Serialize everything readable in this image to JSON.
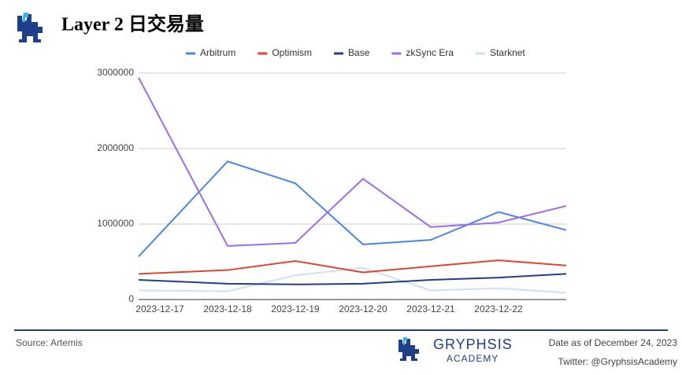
{
  "chart_data": {
    "type": "line",
    "title": "Layer 2 日交易量",
    "categories": [
      "2023-12-17",
      "2023-12-18",
      "2023-12-19",
      "2023-12-20",
      "2023-12-21",
      "2023-12-22",
      null
    ],
    "series": [
      {
        "name": "Arbitrum",
        "color": "#4a86e8",
        "values": [
          570000,
          1830000,
          1540000,
          730000,
          790000,
          1160000,
          920000
        ]
      },
      {
        "name": "Optimism",
        "color": "#e0452f",
        "values": [
          340000,
          390000,
          510000,
          360000,
          440000,
          520000,
          450000
        ]
      },
      {
        "name": "Base",
        "color": "#1f3f8a",
        "values": [
          260000,
          210000,
          200000,
          210000,
          260000,
          290000,
          340000
        ]
      },
      {
        "name": "zkSync Era",
        "color": "#9b6cf0",
        "values": [
          2940000,
          710000,
          750000,
          1600000,
          960000,
          1020000,
          1240000
        ]
      },
      {
        "name": "Starknet",
        "color": "#cfdff5",
        "values": [
          120000,
          110000,
          320000,
          420000,
          120000,
          150000,
          90000
        ]
      }
    ],
    "ylim": [
      0,
      3000000
    ],
    "yticks": [
      0,
      1000000,
      2000000,
      3000000
    ],
    "grid": true,
    "legend": "top"
  },
  "footer": {
    "source": "Source: Artemis",
    "brand": "GRYPHSIS",
    "brand_sub": "ACADEMY",
    "date": "Date as of December 24, 2023",
    "twitter": "Twitter: @GryphsisAcademy"
  }
}
